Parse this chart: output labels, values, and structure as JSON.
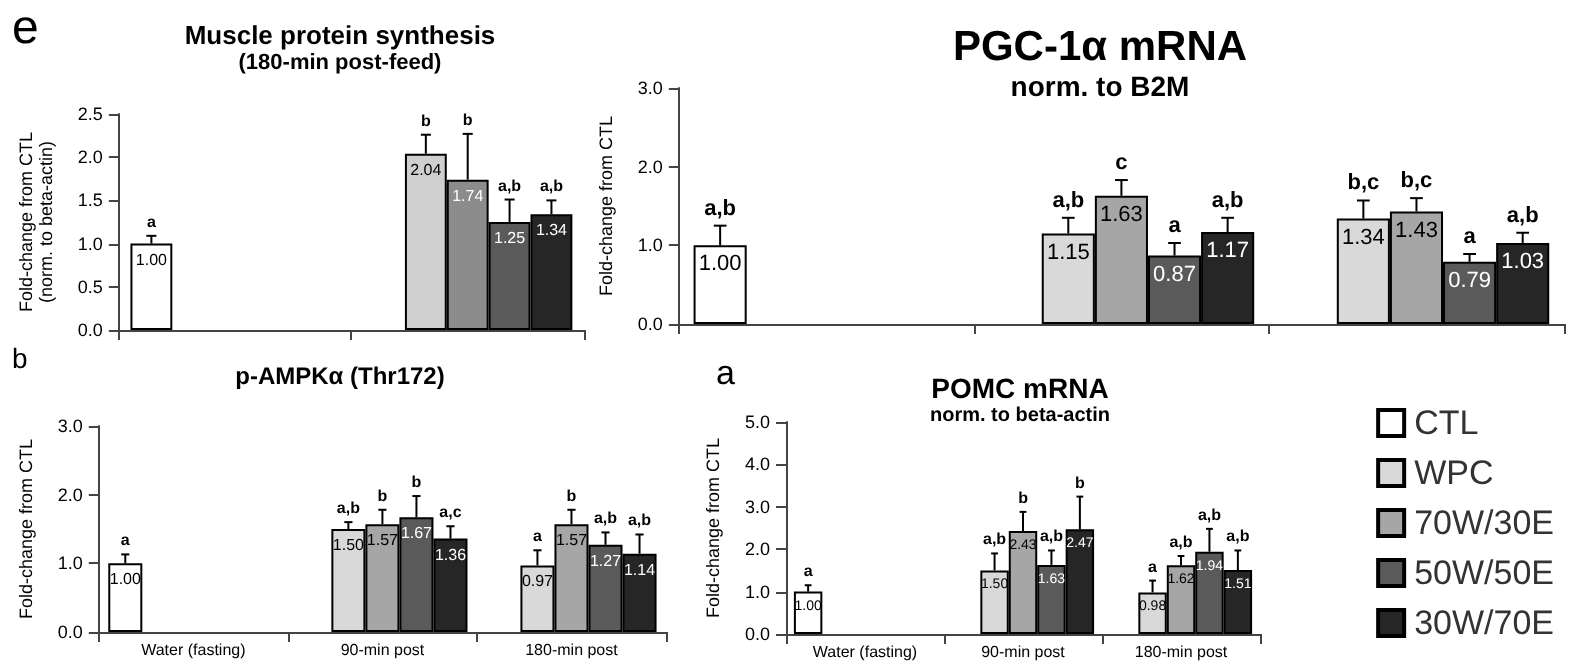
{
  "chart_data": [
    {
      "type": "bar",
      "title": "Muscle protein synthesis",
      "subtitle": "(180-min post-feed)",
      "ylabel": "Fold-change from CTL\n(norm. to beta-actin)",
      "categories": [
        null,
        null
      ],
      "ylim": [
        0,
        2.5
      ],
      "yticks": [
        {
          "value": 0,
          "label": "0.0"
        },
        {
          "value": 0.5,
          "label": "0.5"
        },
        {
          "value": 1,
          "label": "1.0"
        },
        {
          "value": 1.5,
          "label": "1.5"
        },
        {
          "value": 2,
          "label": "2.0"
        },
        {
          "value": 2.5,
          "label": "2.5"
        }
      ],
      "series": [
        {
          "color": "#ffffff",
          "values": [
            1.0,
            null
          ],
          "errors": [
            [
              1.0,
              1.09
            ],
            null
          ],
          "value_labels": [
            "1.00",
            null
          ]
        },
        {
          "color": "#cfcfcf",
          "values": [
            null,
            2.04
          ],
          "errors": [
            null,
            [
              2.04,
              2.26
            ]
          ],
          "value_labels": [
            null,
            "2.04"
          ]
        },
        {
          "color": "#8c8c8c",
          "values": [
            null,
            1.74
          ],
          "errors": [
            null,
            [
              1.74,
              2.27
            ]
          ],
          "value_labels": [
            null,
            "1.74"
          ]
        },
        {
          "color": "#5a5a5a",
          "values": [
            null,
            1.25
          ],
          "errors": [
            null,
            [
              1.25,
              1.51
            ]
          ],
          "value_labels": [
            null,
            "1.25"
          ]
        },
        {
          "color": "#262626",
          "values": [
            null,
            1.34
          ],
          "errors": [
            null,
            [
              1.34,
              1.5
            ]
          ],
          "value_labels": [
            null,
            "1.34"
          ]
        }
      ],
      "annotations": [
        "e",
        "a",
        "b",
        "b",
        "a,b",
        "a,b"
      ]
    },
    {
      "type": "bar",
      "title": "PGC-1α mRNA",
      "subtitle": "norm. to B2M",
      "ylabel": "Fold-change from CTL",
      "categories": [
        null,
        null,
        null
      ],
      "ylim": [
        0,
        3
      ],
      "yticks": [
        {
          "value": 0,
          "label": "0.0"
        },
        {
          "value": 1,
          "label": "1.0"
        },
        {
          "value": 2,
          "label": "2.0"
        },
        {
          "value": 3,
          "label": "3.0"
        }
      ],
      "series": [
        {
          "color": "#ffffff",
          "values": [
            1.0,
            null,
            null
          ],
          "errors": [
            [
              1.0,
              1.25
            ],
            null,
            null
          ],
          "value_labels": [
            "1.00",
            null,
            null
          ]
        },
        {
          "color": "#d9d9d9",
          "values": [
            null,
            1.15,
            1.34
          ],
          "errors": [
            null,
            [
              1.15,
              1.35
            ],
            [
              1.34,
              1.57
            ]
          ],
          "value_labels": [
            null,
            "1.15",
            "1.34"
          ]
        },
        {
          "color": "#a6a6a6",
          "values": [
            null,
            1.63,
            1.43
          ],
          "errors": [
            null,
            [
              1.63,
              1.83
            ],
            [
              1.43,
              1.6
            ]
          ],
          "value_labels": [
            null,
            "1.63",
            "1.43"
          ]
        },
        {
          "color": "#5a5a5a",
          "values": [
            null,
            0.87,
            0.79
          ],
          "errors": [
            null,
            [
              0.87,
              1.03
            ],
            [
              0.79,
              0.89
            ]
          ],
          "value_labels": [
            null,
            "0.87",
            "0.79"
          ]
        },
        {
          "color": "#262626",
          "values": [
            null,
            1.17,
            1.03
          ],
          "errors": [
            null,
            [
              1.17,
              1.35
            ],
            [
              1.03,
              1.16
            ]
          ],
          "value_labels": [
            null,
            "1.17",
            "1.03"
          ]
        }
      ],
      "annotations": [
        "a,b",
        "a,b",
        "c",
        "a",
        "a,b",
        "b,c",
        "b,c",
        "a",
        "a,b"
      ]
    },
    {
      "type": "bar",
      "title": "p-AMPKα (Thr172)",
      "ylabel": "Fold-change from CTL",
      "categories": [
        "Water (fasting)",
        "90-min post",
        "180-min post"
      ],
      "ylim": [
        0,
        3
      ],
      "yticks": [
        {
          "value": 0,
          "label": "0.0"
        },
        {
          "value": 1,
          "label": "1.0"
        },
        {
          "value": 2,
          "label": "2.0"
        },
        {
          "value": 3,
          "label": "3.0"
        }
      ],
      "series": [
        {
          "color": "#ffffff",
          "values": [
            1.0,
            null,
            null
          ],
          "errors": [
            [
              1.0,
              1.13
            ],
            null,
            null
          ],
          "value_labels": [
            "1.00",
            null,
            null
          ]
        },
        {
          "color": "#d9d9d9",
          "values": [
            null,
            1.5,
            0.97
          ],
          "errors": [
            null,
            [
              1.5,
              1.6
            ],
            [
              0.97,
              1.19
            ]
          ],
          "value_labels": [
            null,
            "1.50",
            "0.97"
          ]
        },
        {
          "color": "#a6a6a6",
          "values": [
            null,
            1.57,
            1.57
          ],
          "errors": [
            null,
            [
              1.57,
              1.78
            ],
            [
              1.57,
              1.78
            ]
          ],
          "value_labels": [
            null,
            "1.57",
            "1.57"
          ]
        },
        {
          "color": "#5a5a5a",
          "values": [
            null,
            1.67,
            1.27
          ],
          "errors": [
            null,
            [
              1.67,
              1.98
            ],
            [
              1.27,
              1.45
            ]
          ],
          "value_labels": [
            null,
            "1.67",
            "1.27"
          ]
        },
        {
          "color": "#262626",
          "values": [
            null,
            1.36,
            1.14
          ],
          "errors": [
            null,
            [
              1.36,
              1.54
            ],
            [
              1.14,
              1.42
            ]
          ],
          "value_labels": [
            null,
            "1.36",
            "1.14"
          ]
        }
      ],
      "annotations": [
        "b",
        "a",
        "a,b",
        "b",
        "b",
        "a,c",
        "a",
        "b",
        "a,b",
        "a,b"
      ]
    },
    {
      "type": "bar",
      "title": "POMC mRNA",
      "subtitle": "norm. to beta-actin",
      "ylabel": "Fold-change from CTL",
      "categories": [
        "Water (fasting)",
        "90-min post",
        "180-min post"
      ],
      "ylim": [
        0,
        5
      ],
      "yticks": [
        {
          "value": 0,
          "label": "0.0"
        },
        {
          "value": 1,
          "label": "1.0"
        },
        {
          "value": 2,
          "label": "2.0"
        },
        {
          "value": 3,
          "label": "3.0"
        },
        {
          "value": 4,
          "label": "4.0"
        },
        {
          "value": 5,
          "label": "5.0"
        }
      ],
      "legend": "right",
      "series": [
        {
          "name": "CTL",
          "color": "#ffffff",
          "values": [
            1.0,
            null,
            null
          ],
          "errors": [
            [
              1.0,
              1.15
            ],
            null,
            null
          ],
          "value_labels": [
            "1.00",
            null,
            null
          ]
        },
        {
          "name": "WPC",
          "color": "#d9d9d9",
          "values": [
            null,
            1.5,
            0.98
          ],
          "errors": [
            null,
            [
              1.5,
              1.9
            ],
            [
              0.98,
              1.26
            ]
          ],
          "value_labels": [
            null,
            "1.50",
            "0.98"
          ]
        },
        {
          "name": "70W/30E",
          "color": "#a6a6a6",
          "values": [
            null,
            2.43,
            1.62
          ],
          "errors": [
            null,
            [
              2.43,
              2.88
            ],
            [
              1.62,
              1.84
            ]
          ],
          "value_labels": [
            null,
            "2.43",
            "1.62"
          ]
        },
        {
          "name": "50W/50E",
          "color": "#5a5a5a",
          "values": [
            null,
            1.63,
            1.94
          ],
          "errors": [
            null,
            [
              1.63,
              1.97
            ],
            [
              1.94,
              2.48
            ]
          ],
          "value_labels": [
            null,
            "1.63",
            "1.94"
          ]
        },
        {
          "name": "30W/70E",
          "color": "#262626",
          "values": [
            null,
            2.47,
            1.51
          ],
          "errors": [
            null,
            [
              2.47,
              3.24
            ],
            [
              1.51,
              1.97
            ]
          ],
          "value_labels": [
            null,
            "2.47",
            "1.51"
          ]
        }
      ],
      "annotations": [
        "a",
        "a",
        "a,b",
        "b",
        "a,b",
        "b",
        "a",
        "a,b",
        "a,b",
        "a,b"
      ]
    }
  ]
}
